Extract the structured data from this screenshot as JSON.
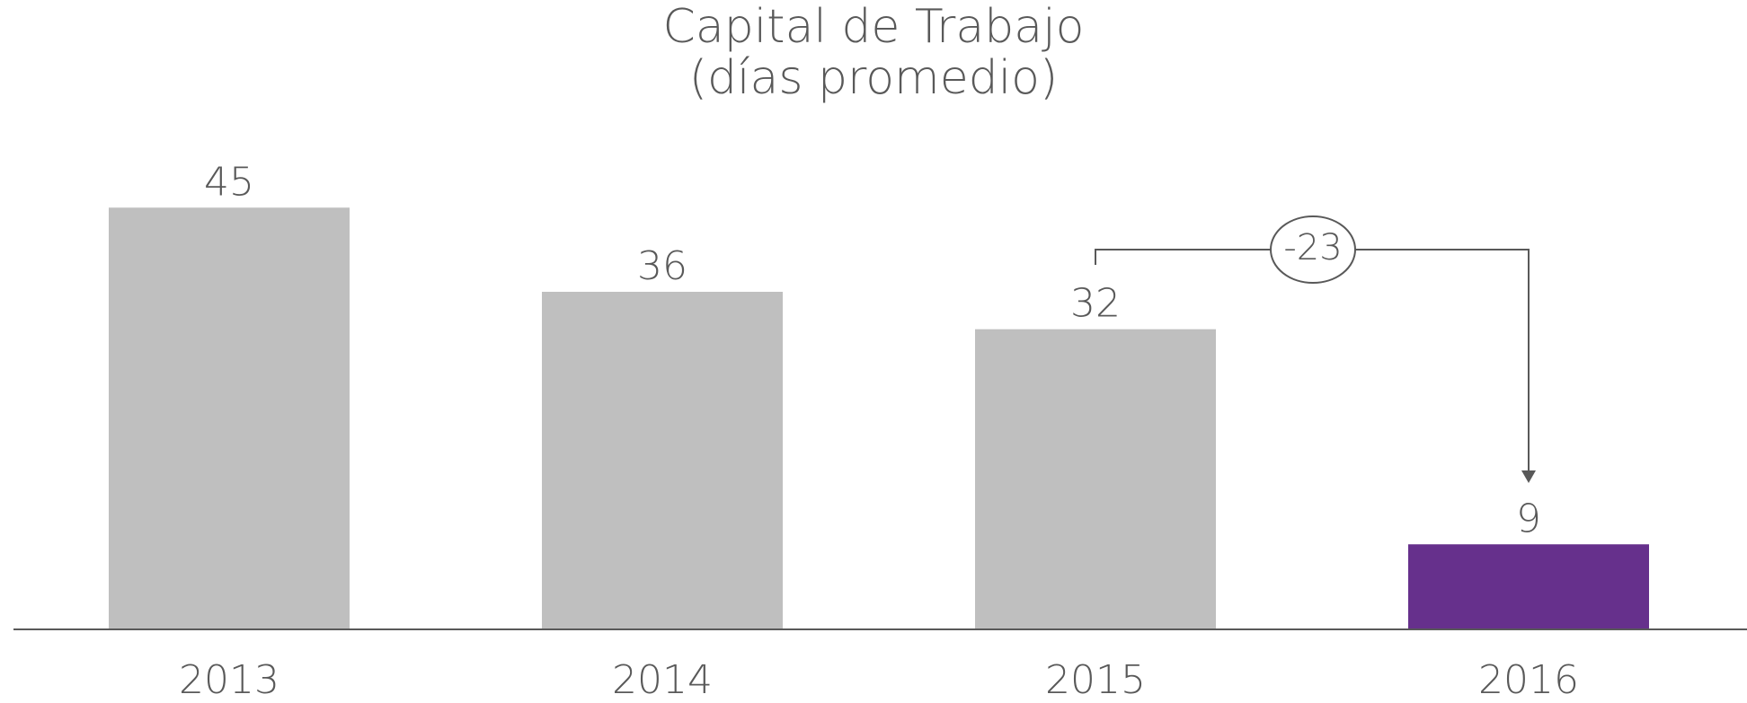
{
  "chart_data": {
    "type": "bar",
    "title": "Capital de Trabajo",
    "subtitle": "(días promedio)",
    "categories": [
      "2013",
      "2014",
      "2015",
      "2016"
    ],
    "values": [
      45,
      36,
      32,
      9
    ],
    "colors": [
      "#bfbfbf",
      "#bfbfbf",
      "#bfbfbf",
      "#66308c"
    ],
    "ylim": [
      0,
      60
    ],
    "annotations": [
      {
        "text": "-23"
      }
    ]
  }
}
